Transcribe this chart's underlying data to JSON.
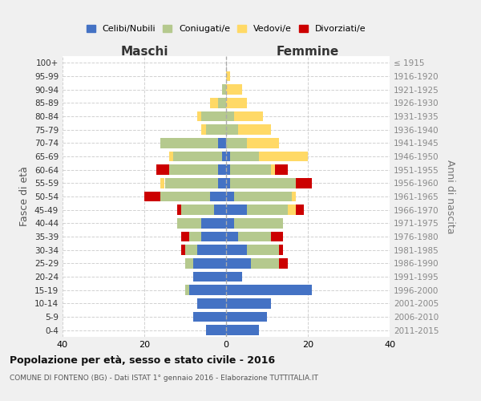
{
  "age_groups": [
    "0-4",
    "5-9",
    "10-14",
    "15-19",
    "20-24",
    "25-29",
    "30-34",
    "35-39",
    "40-44",
    "45-49",
    "50-54",
    "55-59",
    "60-64",
    "65-69",
    "70-74",
    "75-79",
    "80-84",
    "85-89",
    "90-94",
    "95-99",
    "100+"
  ],
  "birth_years": [
    "2011-2015",
    "2006-2010",
    "2001-2005",
    "1996-2000",
    "1991-1995",
    "1986-1990",
    "1981-1985",
    "1976-1980",
    "1971-1975",
    "1966-1970",
    "1961-1965",
    "1956-1960",
    "1951-1955",
    "1946-1950",
    "1941-1945",
    "1936-1940",
    "1931-1935",
    "1926-1930",
    "1921-1925",
    "1916-1920",
    "≤ 1915"
  ],
  "maschi": {
    "celibi": [
      5,
      8,
      7,
      9,
      8,
      8,
      7,
      6,
      6,
      3,
      4,
      2,
      2,
      1,
      2,
      0,
      0,
      0,
      0,
      0,
      0
    ],
    "coniugati": [
      0,
      0,
      0,
      1,
      0,
      2,
      3,
      3,
      6,
      8,
      12,
      13,
      12,
      12,
      14,
      5,
      6,
      2,
      1,
      0,
      0
    ],
    "vedovi": [
      0,
      0,
      0,
      0,
      0,
      0,
      0,
      0,
      0,
      0,
      0,
      1,
      0,
      1,
      0,
      1,
      1,
      2,
      0,
      0,
      0
    ],
    "divorziati": [
      0,
      0,
      0,
      0,
      0,
      0,
      1,
      2,
      0,
      1,
      4,
      0,
      3,
      0,
      0,
      0,
      0,
      0,
      0,
      0,
      0
    ]
  },
  "femmine": {
    "nubili": [
      8,
      10,
      11,
      21,
      4,
      6,
      5,
      3,
      2,
      5,
      2,
      1,
      1,
      1,
      0,
      0,
      0,
      0,
      0,
      0,
      0
    ],
    "coniugate": [
      0,
      0,
      0,
      0,
      0,
      7,
      8,
      8,
      12,
      10,
      14,
      16,
      10,
      7,
      5,
      3,
      2,
      0,
      0,
      0,
      0
    ],
    "vedove": [
      0,
      0,
      0,
      0,
      0,
      0,
      0,
      0,
      0,
      2,
      1,
      0,
      1,
      12,
      8,
      8,
      7,
      5,
      4,
      1,
      0
    ],
    "divorziate": [
      0,
      0,
      0,
      0,
      0,
      2,
      1,
      3,
      0,
      2,
      0,
      4,
      3,
      0,
      0,
      0,
      0,
      0,
      0,
      0,
      0
    ]
  },
  "colors": {
    "celibi_nubili": "#4472c4",
    "coniugati": "#b5c98e",
    "vedovi": "#ffd966",
    "divorziati": "#cc0000"
  },
  "xlim": 40,
  "title": "Popolazione per età, sesso e stato civile - 2016",
  "subtitle": "COMUNE DI FONTENO (BG) - Dati ISTAT 1° gennaio 2016 - Elaborazione TUTTITALIA.IT",
  "xlabel_left": "Maschi",
  "xlabel_right": "Femmine",
  "ylabel_left": "Fasce di età",
  "ylabel_right": "Anni di nascita",
  "bg_color": "#f0f0f0",
  "plot_bg": "#ffffff"
}
